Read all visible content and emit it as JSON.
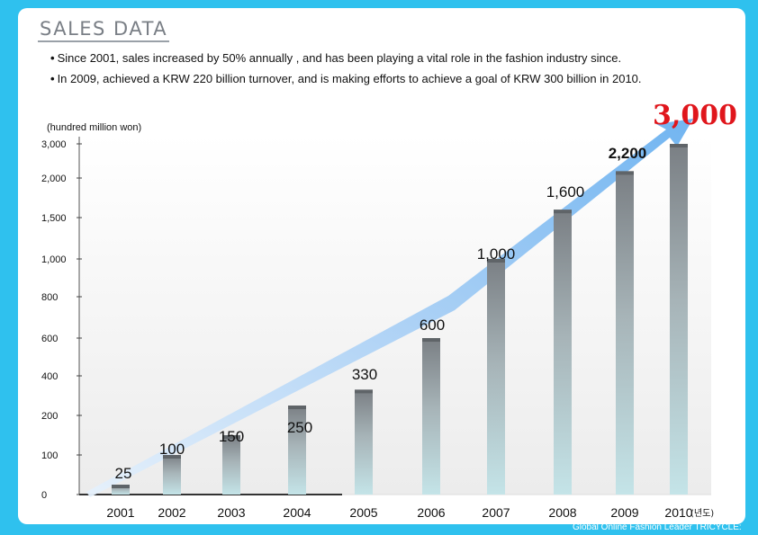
{
  "title": "SALES DATA",
  "bullets": [
    "Since 2001, sales increased by 50% annually , and has been playing a vital role in the fashion industry since.",
    "In 2009, achieved a KRW 220 billion turnover, and is making efforts to achieve a goal of  KRW 300 billion in 2010."
  ],
  "bullet_marker": "•",
  "footer": "Global Online Fashion Leader TRICYCLE:",
  "colors": {
    "frame": "#2fc1ee",
    "highlight": "#e0161c",
    "arrow": "#6ab1f0"
  },
  "chart_data": {
    "type": "bar",
    "ylabel": "(hundred million won)",
    "y_ticks": [
      "0",
      "100",
      "200",
      "400",
      "600",
      "800",
      "1,000",
      "1,500",
      "2,000",
      "3,000"
    ],
    "categories": [
      "2001",
      "2002",
      "2003",
      "2004",
      "2005",
      "2006",
      "2007",
      "2008",
      "2009",
      "2010"
    ],
    "category_suffix_last": "(년도)",
    "values": [
      25,
      100,
      150,
      250,
      330,
      600,
      1000,
      1600,
      2200,
      3000
    ],
    "value_labels": [
      "25",
      "100",
      "150",
      "250",
      "330",
      "600",
      "1,000",
      "1,600",
      "2,200",
      "3,000"
    ],
    "y_axis_scale": "non-linear (ticks unevenly spaced)",
    "trend_arrow": true,
    "grid": false
  }
}
